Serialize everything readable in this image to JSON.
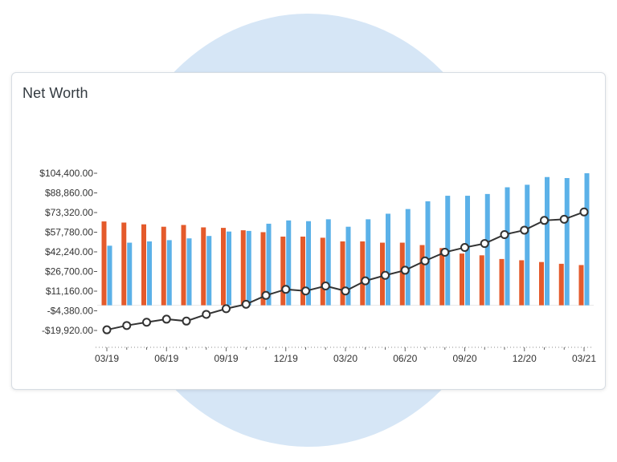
{
  "title": "Net Worth",
  "colors": {
    "bar_a": "#e45a2b",
    "bar_b": "#5bb1e8",
    "line": "#333333",
    "background_circle": "#d6e6f6"
  },
  "chart_data": {
    "type": "bar",
    "title": "Net Worth",
    "xlabel": "",
    "ylabel": "",
    "grid": false,
    "ylim": [
      -19920,
      104400
    ],
    "y_ticks": [
      104400,
      88860,
      73320,
      57780,
      42240,
      26700,
      11160,
      -4380,
      -19920
    ],
    "y_tick_labels": [
      "$104,400.00",
      "$88,860.00",
      "$73,320.00",
      "$57,780.00",
      "$42,240.00",
      "$26,700.00",
      "$11,160.00",
      "-$4,380.00",
      "-$19,920.00"
    ],
    "categories": [
      "03/19",
      "04/19",
      "05/19",
      "06/19",
      "07/19",
      "08/19",
      "09/19",
      "10/19",
      "11/19",
      "12/19",
      "01/20",
      "02/20",
      "03/20",
      "04/20",
      "05/20",
      "06/20",
      "07/20",
      "08/20",
      "09/20",
      "10/20",
      "11/20",
      "12/20",
      "01/21",
      "02/21",
      "03/21"
    ],
    "x_tick_labels": [
      "03/19",
      "06/19",
      "09/19",
      "12/19",
      "03/20",
      "06/20",
      "09/20",
      "12/20",
      "03/21"
    ],
    "series": [
      {
        "type": "bar",
        "values": [
          66300,
          65400,
          64000,
          62100,
          63500,
          61600,
          61200,
          59300,
          57800,
          54300,
          54300,
          53400,
          50500,
          50500,
          49500,
          49500,
          47600,
          45200,
          40900,
          39500,
          36600,
          35600,
          34200,
          32800,
          31800
        ]
      },
      {
        "type": "bar",
        "values": [
          47100,
          49500,
          50500,
          51500,
          52900,
          54800,
          58300,
          58800,
          64500,
          67100,
          66500,
          68000,
          62100,
          68000,
          72400,
          76100,
          82200,
          86600,
          86600,
          88000,
          93300,
          95300,
          101400,
          100600,
          104400
        ]
      },
      {
        "type": "line",
        "values": [
          -19400,
          -16000,
          -13400,
          -11000,
          -12500,
          -7200,
          -2700,
          800,
          7800,
          12600,
          11300,
          15300,
          11300,
          19300,
          23700,
          27700,
          35100,
          41900,
          45700,
          48800,
          55900,
          59400,
          67100,
          68000,
          73800
        ]
      }
    ]
  }
}
